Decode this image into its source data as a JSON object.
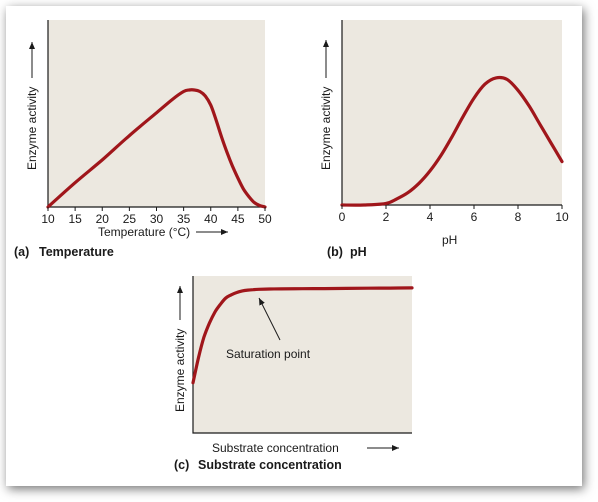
{
  "chart_data": [
    {
      "type": "line",
      "caption_letter": "(a)",
      "caption": "Temperature",
      "xlabel": "Temperature (°C)",
      "ylabel": "Enzyme activity",
      "xlim": [
        10,
        50
      ],
      "ylim": [
        0,
        1
      ],
      "xticks": [
        "10",
        "15",
        "20",
        "25",
        "30",
        "35",
        "40",
        "45",
        "50"
      ],
      "x": [
        10,
        15,
        20,
        25,
        30,
        33,
        35,
        36,
        37,
        38,
        39,
        40,
        41,
        42,
        43,
        44,
        45,
        46,
        47,
        48,
        49,
        50
      ],
      "y": [
        0.0,
        0.16,
        0.31,
        0.47,
        0.62,
        0.71,
        0.76,
        0.77,
        0.77,
        0.76,
        0.73,
        0.67,
        0.57,
        0.46,
        0.36,
        0.27,
        0.19,
        0.12,
        0.07,
        0.03,
        0.01,
        0.0
      ]
    },
    {
      "type": "line",
      "caption_letter": "(b)",
      "caption": "pH",
      "xlabel": "pH",
      "ylabel": "Enzyme activity",
      "xlim": [
        0,
        10
      ],
      "ylim": [
        0,
        1
      ],
      "xticks": [
        "0",
        "2",
        "4",
        "6",
        "8",
        "10"
      ],
      "x": [
        0,
        1,
        2,
        2.5,
        3,
        3.5,
        4,
        4.5,
        5,
        5.5,
        6,
        6.5,
        7,
        7.5,
        8,
        8.5,
        9,
        9.5,
        10
      ],
      "y": [
        0.0,
        0.0,
        0.01,
        0.04,
        0.08,
        0.14,
        0.22,
        0.32,
        0.44,
        0.57,
        0.69,
        0.78,
        0.82,
        0.81,
        0.74,
        0.64,
        0.52,
        0.4,
        0.28
      ]
    },
    {
      "type": "line",
      "caption_letter": "(c)",
      "caption": "Substrate concentration",
      "xlabel": "Substrate concentration",
      "ylabel": "Enzyme activity",
      "annotation": "Saturation point",
      "xlim": [
        0,
        10
      ],
      "ylim": [
        0,
        1
      ],
      "xticks": [],
      "x": [
        0,
        0.25,
        0.5,
        0.75,
        1,
        1.25,
        1.5,
        1.75,
        2,
        2.25,
        2.5,
        2.75,
        3,
        3.5,
        4,
        5,
        6,
        7,
        8,
        9,
        10
      ],
      "y": [
        0.32,
        0.48,
        0.61,
        0.7,
        0.77,
        0.82,
        0.86,
        0.88,
        0.895,
        0.905,
        0.91,
        0.913,
        0.915,
        0.917,
        0.918,
        0.919,
        0.92,
        0.921,
        0.922,
        0.923,
        0.924
      ]
    }
  ]
}
